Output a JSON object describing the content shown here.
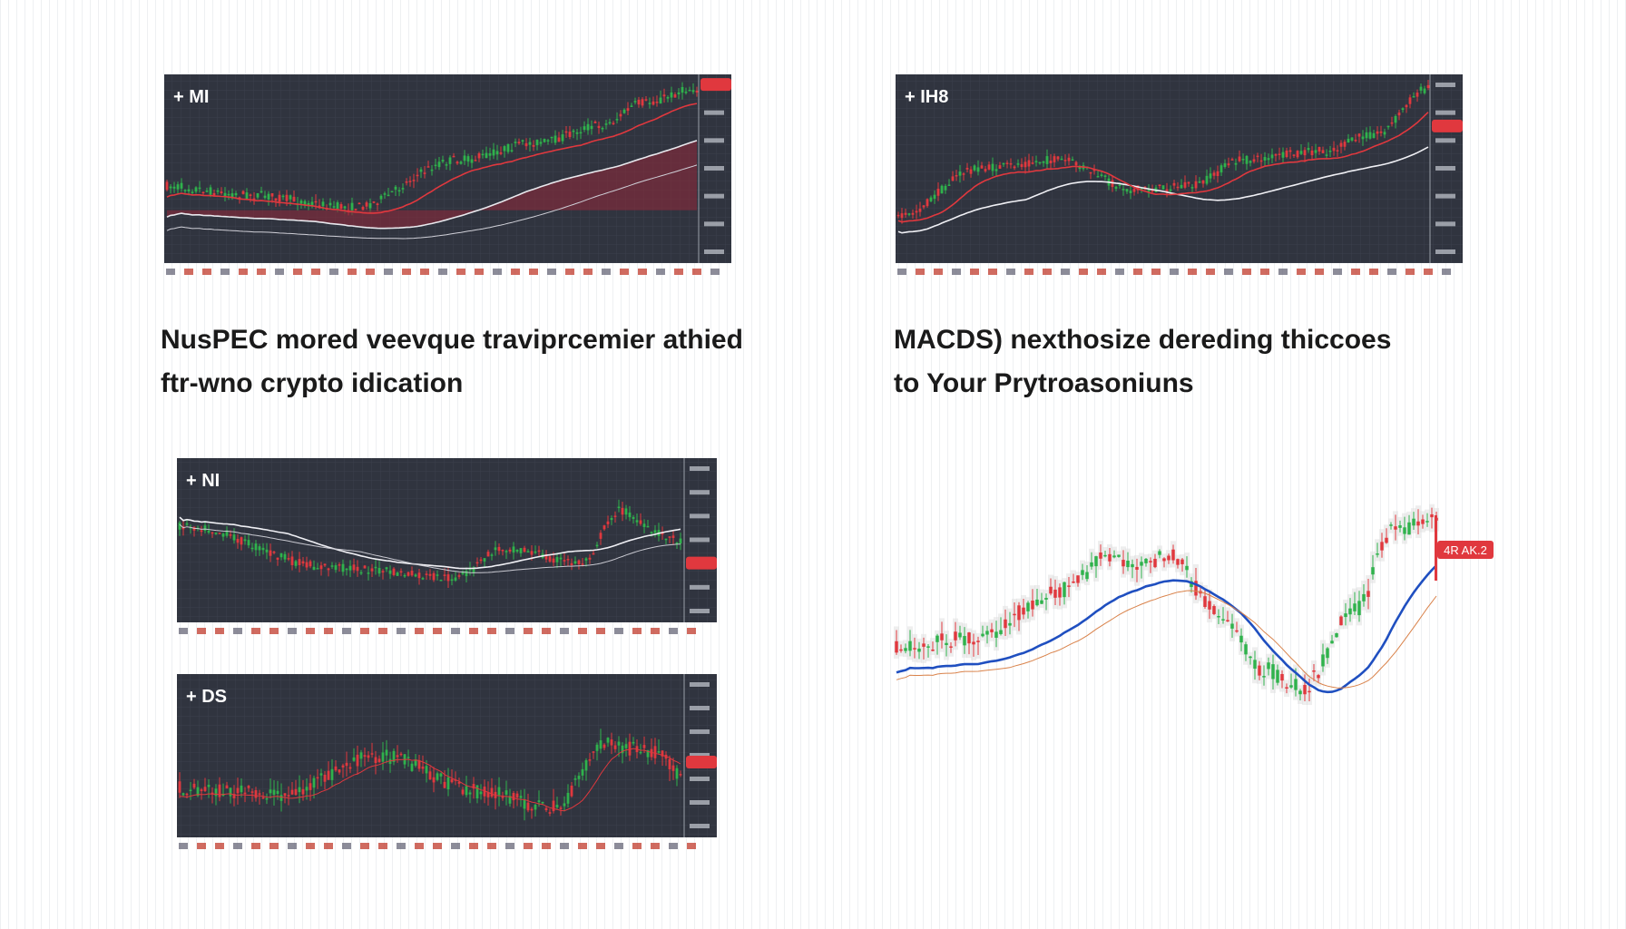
{
  "panels": [
    {
      "label": "+ MI"
    },
    {
      "label": "+ IH8"
    },
    {
      "label": "+ NI"
    },
    {
      "label": "+ DS"
    }
  ],
  "headings": [
    {
      "lines": [
        "NusPEC mored veevque traviprcemier athied",
        "ftr-wno crypto idication"
      ]
    },
    {
      "lines": [
        "MACDS) nexthosize dereding thiccoes",
        "to Your Prytroasoniuns"
      ]
    }
  ],
  "badge": "4R AK.2"
}
